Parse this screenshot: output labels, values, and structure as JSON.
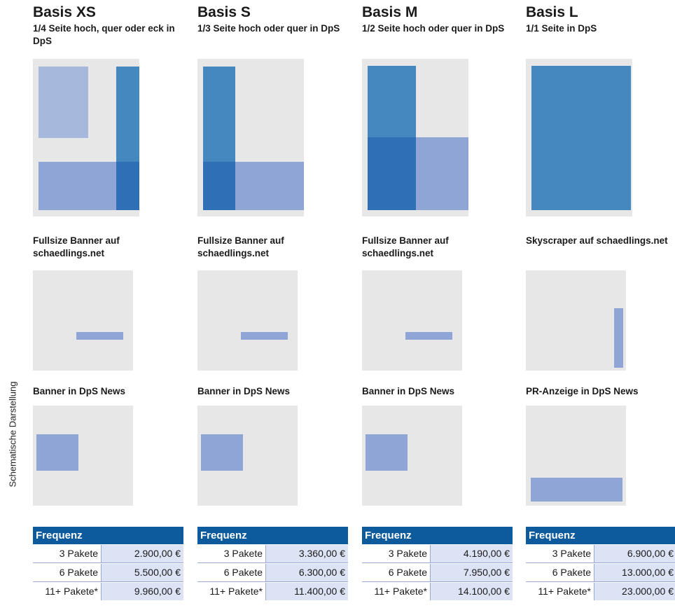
{
  "side_label": "Schematische Darstellung",
  "colors": {
    "print_bg": "#e7e7e8",
    "light_blue": "#a7b8dd",
    "mid_blue": "#8ea5d6",
    "blue": "#4588bf",
    "dark_blue": "#2e6fb6",
    "header_blue": "#0d5a9c",
    "price_bg": "#dbe3f4"
  },
  "packages": [
    {
      "title": "Basis XS",
      "description": "1/4 Seite hoch, quer oder eck in DpS",
      "web_label": "Fullsize Banner auf schaedlings.net",
      "web_ad": "Fullsize Banner",
      "news_label": "Banner in DpS News",
      "news_ad": "Banner",
      "price_header": "Frequenz",
      "prices": [
        {
          "qty": "3 Pakete",
          "amount": "2.900,00 €"
        },
        {
          "qty": "6 Pakete",
          "amount": "5.500,00 €"
        },
        {
          "qty": "11+ Pakete*",
          "amount": "9.960,00 €"
        }
      ]
    },
    {
      "title": "Basis S",
      "description": "1/3 Seite hoch oder quer in DpS",
      "web_label": "Fullsize Banner auf schaedlings.net",
      "web_ad": "Fullsize Banner",
      "news_label": "Banner in DpS News",
      "news_ad": "Banner",
      "price_header": "Frequenz",
      "prices": [
        {
          "qty": "3 Pakete",
          "amount": "3.360,00 €"
        },
        {
          "qty": "6 Pakete",
          "amount": "6.300,00 €"
        },
        {
          "qty": "11+ Pakete*",
          "amount": "11.400,00 €"
        }
      ]
    },
    {
      "title": "Basis M",
      "description": "1/2 Seite hoch oder quer in DpS",
      "web_label": "Fullsize Banner auf schaedlings.net",
      "web_ad": "Fullsize Banner",
      "news_label": "Banner in DpS News",
      "news_ad": "Banner",
      "price_header": "Frequenz",
      "prices": [
        {
          "qty": "3 Pakete",
          "amount": "4.190,00 €"
        },
        {
          "qty": "6 Pakete",
          "amount": "7.950,00 €"
        },
        {
          "qty": "11+ Pakete*",
          "amount": "14.100,00 €"
        }
      ]
    },
    {
      "title": "Basis L",
      "description": "1/1 Seite in DpS",
      "web_label": "Skyscraper auf schaedlings.net",
      "web_ad": "Skyscraper",
      "news_label": "PR-Anzeige in DpS News",
      "news_ad": "PR-Anzeige",
      "price_header": "Frequenz",
      "prices": [
        {
          "qty": "3 Pakete",
          "amount": "6.900,00 €"
        },
        {
          "qty": "6 Pakete",
          "amount": "13.000,00 €"
        },
        {
          "qty": "11+ Pakete*",
          "amount": "23.000,00 €"
        }
      ]
    }
  ]
}
